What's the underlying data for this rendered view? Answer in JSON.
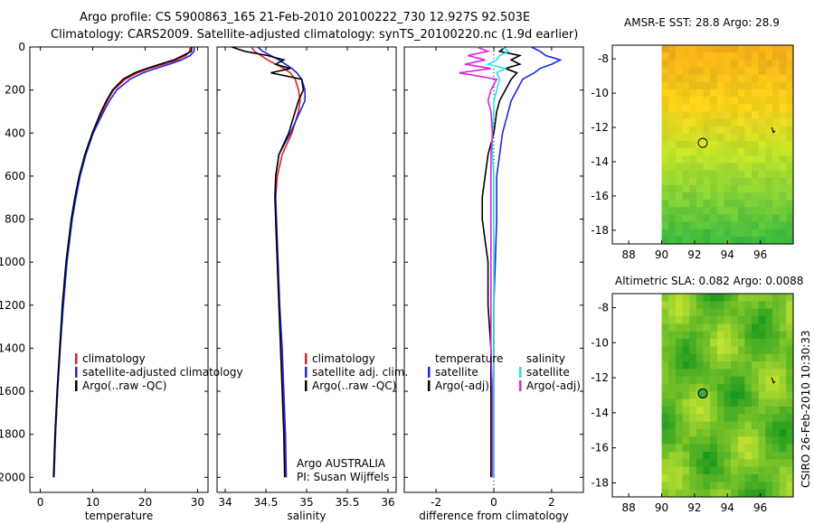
{
  "header": {
    "line1": "Argo profile: CS 5900863_165 21-Feb-2010 20100222_730 12.927S 92.503E",
    "line2": "Climatology: CARS2009. Satellite-adjusted climatology: synTS_20100220.nc (1.9d earlier)"
  },
  "colors": {
    "climatology": "#e0201a",
    "satellite": "#1a28e0",
    "argo": "#000000",
    "salinity_satellite": "#22e6e6",
    "salinity_argo": "#e020e0"
  },
  "chart_data": [
    {
      "type": "line",
      "name": "temperature-panel",
      "xlabel": "temperature",
      "ylabel": "",
      "xlim": [
        -2,
        32
      ],
      "ylim": [
        2070,
        0
      ],
      "xticks": [
        0,
        10,
        20,
        30
      ],
      "yticks": [
        0,
        200,
        400,
        600,
        800,
        1000,
        1200,
        1400,
        1600,
        1800,
        2000
      ],
      "legend_position": "lower-right",
      "legend": [
        "climatology",
        "satellite-adjusted climatology",
        "Argo(..raw -QC)"
      ],
      "depth": [
        0,
        20,
        40,
        60,
        80,
        100,
        120,
        150,
        200,
        250,
        300,
        400,
        500,
        600,
        700,
        800,
        1000,
        1200,
        1400,
        1600,
        1800,
        2000
      ],
      "series": [
        {
          "name": "climatology",
          "color": "#e0201a",
          "values": [
            28.6,
            28.5,
            27.8,
            26.2,
            23.5,
            20.8,
            18.6,
            16.2,
            14.0,
            12.8,
            11.8,
            10.0,
            8.6,
            7.5,
            6.7,
            6.0,
            5.0,
            4.3,
            3.8,
            3.3,
            2.9,
            2.6
          ]
        },
        {
          "name": "satellite-adjusted climatology",
          "color": "#1a28e0",
          "values": [
            29.4,
            29.3,
            28.6,
            27.0,
            24.6,
            22.0,
            19.6,
            17.1,
            14.6,
            13.2,
            12.1,
            10.1,
            8.7,
            7.6,
            6.8,
            6.1,
            5.1,
            4.4,
            3.8,
            3.3,
            2.9,
            2.6
          ]
        },
        {
          "name": "Argo(..raw -QC)",
          "color": "#000000",
          "values": [
            28.9,
            28.8,
            27.2,
            25.5,
            22.8,
            20.3,
            18.0,
            15.8,
            13.8,
            12.6,
            11.6,
            9.9,
            8.5,
            7.4,
            6.6,
            5.9,
            4.9,
            4.2,
            3.7,
            3.2,
            2.8,
            2.5
          ]
        }
      ]
    },
    {
      "type": "line",
      "name": "salinity-panel",
      "xlabel": "salinity",
      "xlim": [
        33.9,
        36.1
      ],
      "ylim": [
        2070,
        0
      ],
      "xticks": [
        34,
        34.5,
        35,
        35.5,
        36
      ],
      "legend_position": "lower-right",
      "legend": [
        "climatology",
        "satellite adj. clim.",
        "Argo(..raw -QC)"
      ],
      "annotation": [
        "Argo AUSTRALIA",
        "PI: Susan Wijffels"
      ],
      "depth": [
        0,
        20,
        40,
        60,
        80,
        100,
        120,
        150,
        200,
        250,
        300,
        400,
        500,
        600,
        700,
        800,
        1000,
        1200,
        1400,
        1600,
        1800,
        2000
      ],
      "series": [
        {
          "name": "climatology",
          "color": "#e0201a",
          "values": [
            34.32,
            34.36,
            34.44,
            34.52,
            34.62,
            34.72,
            34.8,
            34.86,
            34.9,
            34.92,
            34.9,
            34.82,
            34.7,
            34.64,
            34.62,
            34.62,
            34.64,
            34.66,
            34.69,
            34.71,
            34.73,
            34.74
          ]
        },
        {
          "name": "satellite adj. clim.",
          "color": "#1a28e0",
          "values": [
            34.4,
            34.46,
            34.56,
            34.66,
            34.74,
            34.82,
            34.88,
            34.94,
            34.98,
            34.98,
            34.92,
            34.8,
            34.66,
            34.62,
            34.62,
            34.63,
            34.65,
            34.67,
            34.7,
            34.72,
            34.74,
            34.75
          ]
        },
        {
          "name": "Argo(..raw -QC)",
          "color": "#000000",
          "values": [
            34.08,
            34.24,
            34.52,
            34.72,
            34.62,
            34.8,
            34.56,
            34.94,
            34.96,
            34.9,
            34.86,
            34.78,
            34.66,
            34.62,
            34.61,
            34.62,
            34.64,
            34.66,
            34.68,
            34.7,
            34.72,
            34.73
          ]
        }
      ]
    },
    {
      "type": "line",
      "name": "difference-panel",
      "xlabel": "difference from climatology",
      "xlim": [
        -3.1,
        3.1
      ],
      "ylim": [
        2070,
        0
      ],
      "xticks": [
        -2,
        0,
        2
      ],
      "legend_position": "lower",
      "legend_temperature": [
        "temperature",
        "satellite",
        "Argo(-adj)"
      ],
      "legend_salinity": [
        "salinity",
        "satellite",
        "Argo(-adj)"
      ],
      "depth": [
        0,
        20,
        40,
        60,
        80,
        100,
        120,
        150,
        200,
        250,
        300,
        400,
        500,
        600,
        700,
        800,
        1000,
        1200,
        1400,
        1600,
        1800,
        2000
      ],
      "series": [
        {
          "name": "temperature satellite",
          "color": "#1a28e0",
          "values": [
            1.3,
            1.6,
            1.8,
            2.3,
            2.0,
            1.6,
            1.4,
            1.0,
            0.8,
            0.6,
            0.5,
            0.3,
            0.2,
            0.1,
            0.1,
            0.1,
            0.05,
            0.0,
            0.0,
            0.0,
            0.0,
            0.0
          ]
        },
        {
          "name": "temperature Argo(-adj)",
          "color": "#000000",
          "values": [
            0.4,
            0.2,
            0.9,
            0.6,
            0.9,
            0.4,
            0.8,
            0.6,
            0.4,
            0.2,
            0.1,
            0.0,
            -0.2,
            -0.3,
            -0.4,
            -0.4,
            -0.2,
            -0.2,
            -0.1,
            -0.1,
            -0.1,
            -0.1
          ]
        },
        {
          "name": "salinity satellite",
          "color": "#22e6e6",
          "values": [
            0.3,
            0.5,
            0.2,
            0.1,
            -0.2,
            0.4,
            0.1,
            0.2,
            0.1,
            0.0,
            0.0,
            -0.05,
            -0.05,
            0.0,
            0.0,
            0.0,
            0.0,
            0.0,
            0.0,
            0.0,
            0.0,
            0.0
          ]
        },
        {
          "name": "salinity Argo(-adj)",
          "color": "#e020e0",
          "values": [
            -0.6,
            -0.2,
            -0.9,
            -0.3,
            -1.0,
            -0.1,
            -1.2,
            0.1,
            -0.1,
            -0.2,
            -0.1,
            -0.05,
            -0.1,
            -0.1,
            -0.1,
            -0.1,
            -0.1,
            -0.1,
            -0.1,
            -0.05,
            -0.05,
            -0.05
          ]
        }
      ]
    },
    {
      "type": "heatmap",
      "name": "sst-map",
      "title": "AMSR-E SST: 28.8 Argo: 28.9",
      "xlim": [
        87,
        98
      ],
      "ylim": [
        -18.8,
        -7.2
      ],
      "xticks": [
        88,
        90,
        92,
        94,
        96
      ],
      "yticks": [
        -8,
        -10,
        -12,
        -14,
        -16,
        -18
      ],
      "data_lon_range": [
        90,
        98
      ],
      "float_location": [
        92.5,
        -12.9
      ],
      "track": [
        [
          96.7,
          -12.0
        ],
        [
          96.8,
          -12.3
        ],
        [
          96.9,
          -12.2
        ]
      ]
    },
    {
      "type": "heatmap",
      "name": "sla-map",
      "title": "Altimetric SLA: 0.082 Argo: 0.0088",
      "xlim": [
        87,
        98
      ],
      "ylim": [
        -18.8,
        -7.2
      ],
      "xticks": [
        88,
        90,
        92,
        94,
        96
      ],
      "yticks": [
        -8,
        -10,
        -12,
        -14,
        -16,
        -18
      ],
      "data_lon_range": [
        90,
        98
      ],
      "float_location": [
        92.5,
        -12.9
      ],
      "track": [
        [
          96.7,
          -12.0
        ],
        [
          96.8,
          -12.3
        ],
        [
          96.9,
          -12.2
        ]
      ]
    }
  ],
  "footer": {
    "credit": "CSIRO 26-Feb-2010 10:30:33"
  }
}
